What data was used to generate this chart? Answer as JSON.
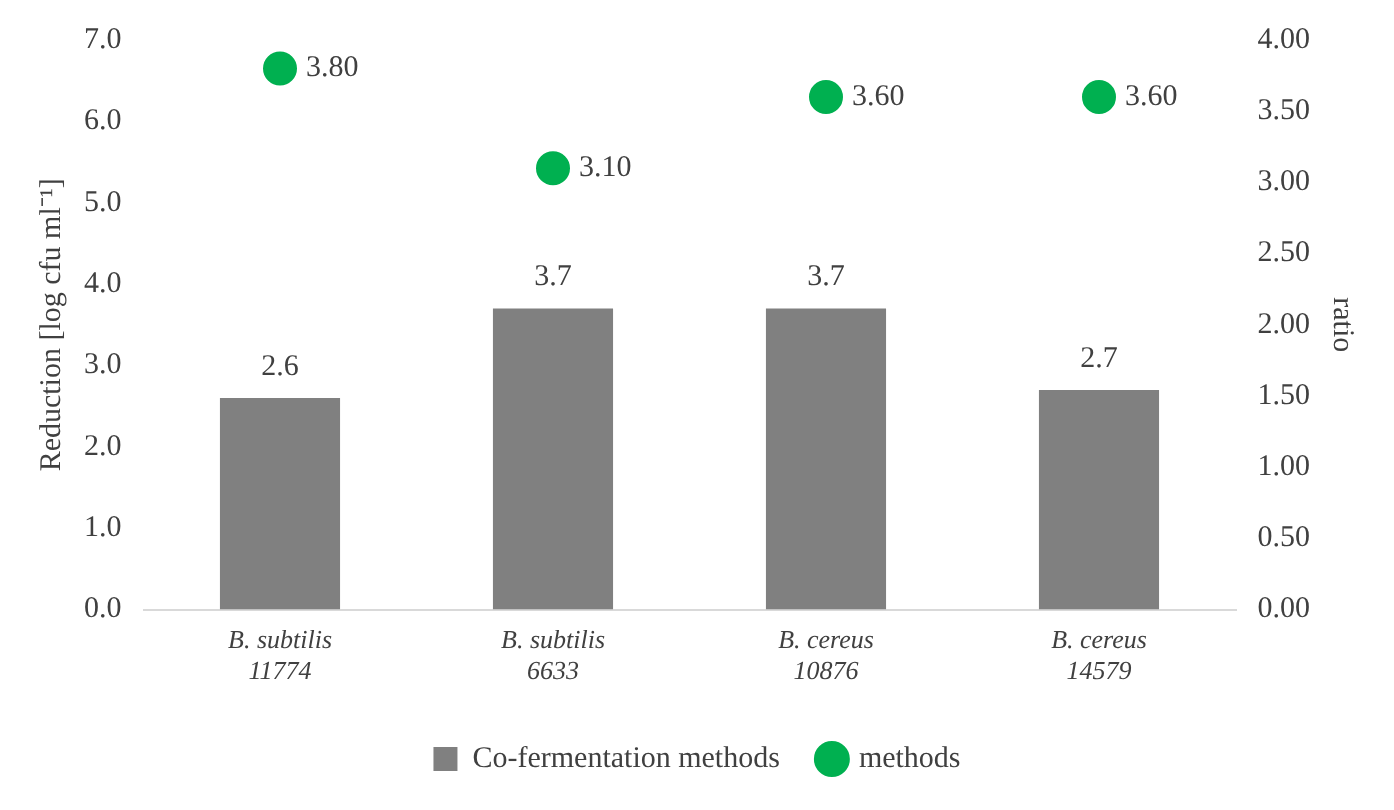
{
  "chart_data": {
    "type": "bar",
    "categories": [
      "B. subtilis 11774",
      "B. subtilis 6633",
      "B. cereus 10876",
      "B. cereus 14579"
    ],
    "ylabel": "Reduction [log cfu ml⁻¹]",
    "y2label": "ratio",
    "ylim": [
      0,
      7
    ],
    "yticks": [
      {
        "value": 0,
        "label": "0.0"
      },
      {
        "value": 1,
        "label": "1.0"
      },
      {
        "value": 2,
        "label": "2.0"
      },
      {
        "value": 3,
        "label": "3.0"
      },
      {
        "value": 4,
        "label": "4.0"
      },
      {
        "value": 5,
        "label": "5.0"
      },
      {
        "value": 6,
        "label": "6.0"
      },
      {
        "value": 7,
        "label": "7.0"
      }
    ],
    "y2lim": [
      0,
      4
    ],
    "y2ticks": [
      {
        "value": 0,
        "label": "0.00"
      },
      {
        "value": 0.5,
        "label": "0.50"
      },
      {
        "value": 1,
        "label": "1.00"
      },
      {
        "value": 1.5,
        "label": "1.50"
      },
      {
        "value": 2,
        "label": "2.00"
      },
      {
        "value": 2.5,
        "label": "2.50"
      },
      {
        "value": 3,
        "label": "3.00"
      },
      {
        "value": 3.5,
        "label": "3.50"
      },
      {
        "value": 4,
        "label": "4.00"
      }
    ],
    "series": [
      {
        "name": "Co-fermentation methods",
        "color": "#808080",
        "values": [
          2.6,
          3.7,
          3.7,
          2.7
        ],
        "value_labels": [
          "2.6",
          "3.7",
          "3.7",
          "2.7"
        ]
      },
      {
        "name": "methods",
        "type": "scatter",
        "axis": "y2",
        "color": "#00b050",
        "values": [
          3.8,
          3.1,
          3.6,
          3.6
        ],
        "value_labels": [
          "3.80",
          "3.10",
          "3.60",
          "3.60"
        ]
      }
    ],
    "grid": false,
    "legend": "bottom",
    "marker": "circle"
  }
}
